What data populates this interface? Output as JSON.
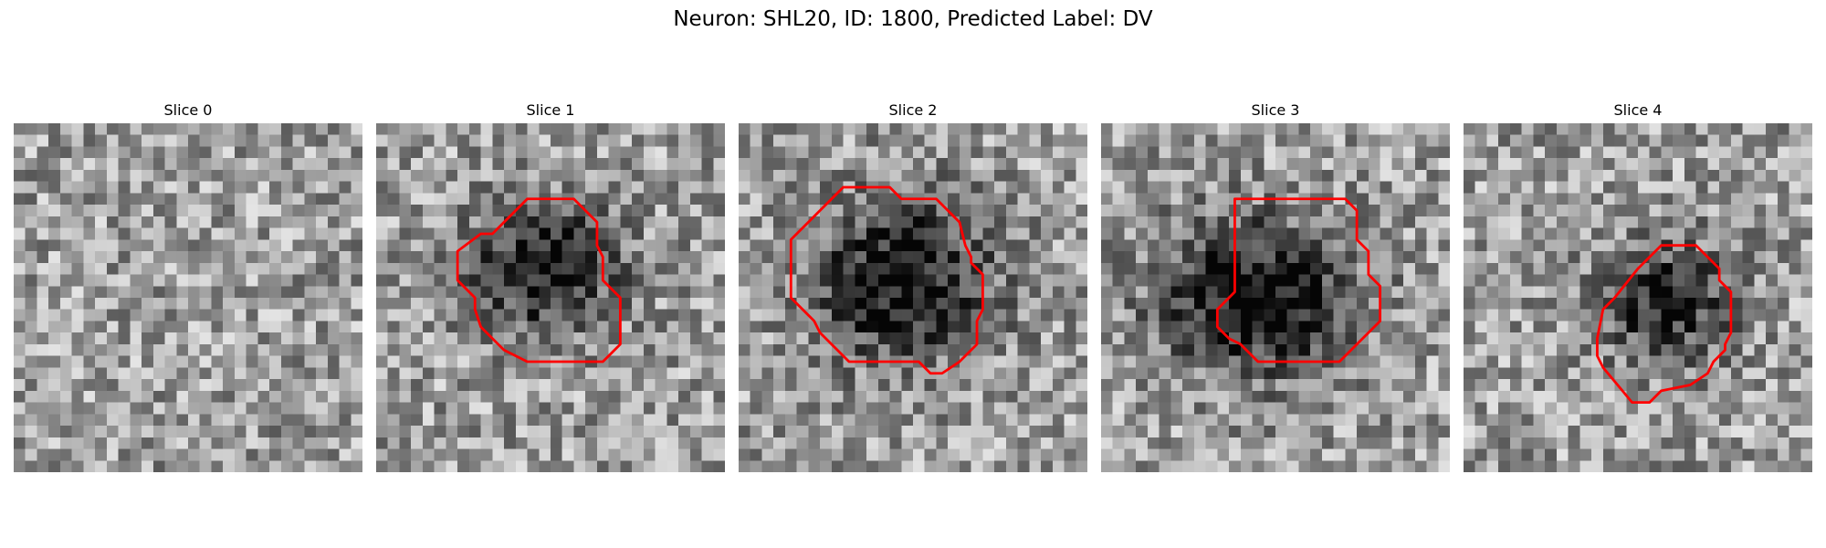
{
  "figure": {
    "title": "Neuron: SHL20, ID: 1800, Predicted Label: DV"
  },
  "slices": [
    {
      "title": "Slice 0",
      "has_contour": false,
      "blob": null,
      "seed": 11
    },
    {
      "title": "Slice 1",
      "has_contour": true,
      "blob": {
        "cx": 14.5,
        "cy": 12.5,
        "rx": 7.5,
        "ry": 6.5,
        "depth": 0.55
      },
      "seed": 23,
      "contour": [
        [
          13,
          6.5
        ],
        [
          17,
          6.5
        ],
        [
          19,
          8.5
        ],
        [
          19,
          10.5
        ],
        [
          19.5,
          11.5
        ],
        [
          19.5,
          13.5
        ],
        [
          21,
          15
        ],
        [
          21,
          19
        ],
        [
          19.5,
          20.5
        ],
        [
          13,
          20.5
        ],
        [
          12,
          20
        ],
        [
          11,
          19.5
        ],
        [
          10.5,
          19
        ],
        [
          9,
          17.5
        ],
        [
          8.5,
          16
        ],
        [
          8.5,
          15
        ],
        [
          7,
          13.5
        ],
        [
          7,
          11
        ],
        [
          9,
          9.5
        ],
        [
          10,
          9.5
        ],
        [
          11.5,
          8
        ]
      ]
    },
    {
      "title": "Slice 2",
      "has_contour": true,
      "blob": {
        "cx": 14,
        "cy": 13.5,
        "rx": 9,
        "ry": 8,
        "depth": 0.6
      },
      "seed": 37,
      "contour": [
        [
          9,
          5.5
        ],
        [
          13,
          5.5
        ],
        [
          14,
          6.5
        ],
        [
          17,
          6.5
        ],
        [
          19,
          8.5
        ],
        [
          19.5,
          10.5
        ],
        [
          20,
          11.5
        ],
        [
          20,
          12
        ],
        [
          21,
          13
        ],
        [
          21,
          16
        ],
        [
          20.5,
          17
        ],
        [
          20.5,
          19
        ],
        [
          19,
          20.5
        ],
        [
          17.5,
          21.5
        ],
        [
          16.5,
          21.5
        ],
        [
          15.5,
          20.5
        ],
        [
          9.5,
          20.5
        ],
        [
          7,
          18
        ],
        [
          6.5,
          17
        ],
        [
          6,
          16.5
        ],
        [
          4.5,
          15
        ],
        [
          4.5,
          10
        ],
        [
          6,
          8.5
        ],
        [
          7,
          7.5
        ]
      ]
    },
    {
      "title": "Slice 3",
      "has_contour": true,
      "blob": {
        "cx": 13.5,
        "cy": 15,
        "rx": 9.5,
        "ry": 7.5,
        "depth": 0.65
      },
      "seed": 51,
      "contour": [
        [
          11.5,
          6.5
        ],
        [
          21,
          6.5
        ],
        [
          22,
          7.5
        ],
        [
          22,
          10
        ],
        [
          23,
          11
        ],
        [
          23,
          13
        ],
        [
          24,
          14
        ],
        [
          24,
          17
        ],
        [
          20.5,
          20.5
        ],
        [
          13.5,
          20.5
        ],
        [
          12,
          19
        ],
        [
          11,
          18.5
        ],
        [
          10,
          17.5
        ],
        [
          10,
          16
        ],
        [
          11.5,
          14.5
        ],
        [
          11.5,
          9
        ],
        [
          11.5,
          8.5
        ]
      ]
    },
    {
      "title": "Slice 4",
      "has_contour": true,
      "blob": {
        "cx": 17.5,
        "cy": 15.5,
        "rx": 6.5,
        "ry": 6,
        "depth": 0.5
      },
      "seed": 67,
      "contour": [
        [
          17,
          10.5
        ],
        [
          20,
          10.5
        ],
        [
          21,
          11.5
        ],
        [
          22,
          12.5
        ],
        [
          22,
          13.5
        ],
        [
          23,
          14.5
        ],
        [
          23,
          18
        ],
        [
          22.5,
          19
        ],
        [
          22.5,
          19.5
        ],
        [
          21.5,
          20.5
        ],
        [
          21,
          21.5
        ],
        [
          19.5,
          22.5
        ],
        [
          17,
          23
        ],
        [
          16,
          24
        ],
        [
          14.5,
          24
        ],
        [
          12,
          21
        ],
        [
          11.5,
          20
        ],
        [
          11.5,
          18.5
        ],
        [
          12,
          16
        ],
        [
          13,
          15
        ],
        [
          15,
          12.5
        ]
      ]
    }
  ],
  "contour_color": "#ff0000"
}
